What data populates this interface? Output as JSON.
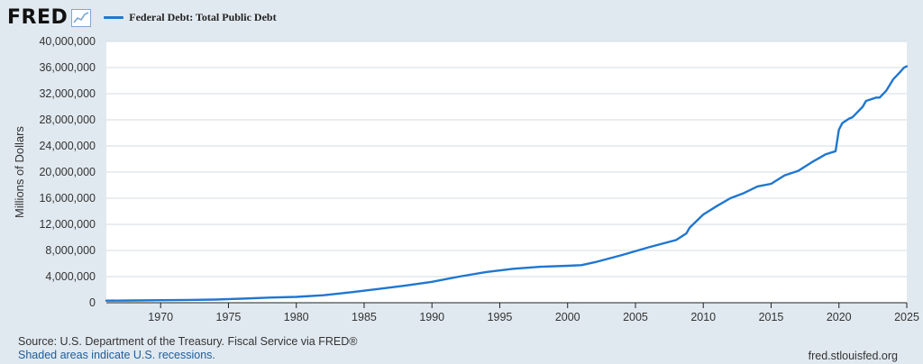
{
  "brand": {
    "name": "FRED",
    "icon": "line-chart-icon"
  },
  "chart_data": {
    "type": "line",
    "title": "",
    "xlabel": "",
    "ylabel": "Millions of Dollars",
    "xlim": [
      1966,
      2025
    ],
    "ylim": [
      0,
      40000000
    ],
    "x_ticks": [
      1970,
      1975,
      1980,
      1985,
      1990,
      1995,
      2000,
      2005,
      2010,
      2015,
      2020,
      2025
    ],
    "y_ticks": [
      0,
      4000000,
      8000000,
      12000000,
      16000000,
      20000000,
      24000000,
      28000000,
      32000000,
      36000000,
      40000000
    ],
    "y_tick_labels": [
      "0",
      "4,000,000",
      "8,000,000",
      "12,000,000",
      "16,000,000",
      "20,000,000",
      "24,000,000",
      "28,000,000",
      "32,000,000",
      "36,000,000",
      "40,000,000"
    ],
    "grid": true,
    "legend_position": "top-left",
    "series": [
      {
        "name": "Federal Debt: Total Public Debt",
        "color": "#1f77d0",
        "x": [
          1966,
          1968,
          1970,
          1972,
          1974,
          1976,
          1978,
          1980,
          1982,
          1984,
          1986,
          1988,
          1990,
          1992,
          1994,
          1996,
          1998,
          2000,
          2001,
          2002,
          2004,
          2006,
          2008,
          2008.75,
          2009,
          2010,
          2011,
          2012,
          2013,
          2014,
          2015,
          2016,
          2017,
          2018,
          2019,
          2019.75,
          2020,
          2020.25,
          2020.75,
          2021,
          2021.75,
          2022,
          2022.75,
          2023,
          2023.5,
          2024,
          2024.5,
          2024.8,
          2025
        ],
        "values": [
          320000,
          345000,
          380000,
          430000,
          480000,
          620000,
          780000,
          900000,
          1150000,
          1600000,
          2100000,
          2600000,
          3200000,
          4000000,
          4700000,
          5200000,
          5500000,
          5650000,
          5750000,
          6200000,
          7300000,
          8500000,
          9600000,
          10600000,
          11500000,
          13500000,
          14800000,
          16000000,
          16800000,
          17800000,
          18200000,
          19500000,
          20200000,
          21500000,
          22700000,
          23200000,
          26500000,
          27500000,
          28200000,
          28400000,
          30000000,
          30900000,
          31400000,
          31400000,
          32500000,
          34200000,
          35300000,
          36000000,
          36200000
        ]
      }
    ]
  },
  "footer": {
    "source": "Source: U.S. Department of the Treasury. Fiscal Service via FRED®",
    "recessions": "Shaded areas indicate U.S. recessions.",
    "url": "fred.stlouisfed.org"
  }
}
